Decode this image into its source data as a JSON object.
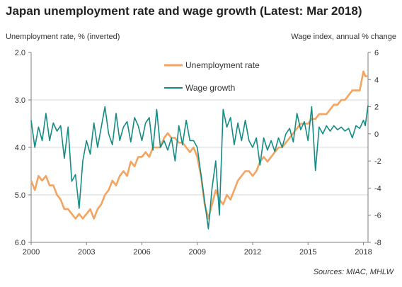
{
  "title": "Japan unemployment rate and wage growth (Latest: Mar 2018)",
  "source": "Sources: MIAC, MHLW",
  "colors": {
    "unemployment": "#f4a460",
    "wage": "#148b83",
    "grid": "#d9d9d9",
    "axis": "#7f7f7f"
  },
  "chart_data": {
    "type": "line",
    "left_axis_label": "Unemployment  rate, % (inverted)",
    "right_axis_label": "Wage index, annual % change",
    "left_axis": {
      "min": 2.0,
      "max": 6.0,
      "inverted": true,
      "ticks": [
        "2.0",
        "3.0",
        "4.0",
        "5.0",
        "6.0"
      ]
    },
    "right_axis": {
      "min": -8,
      "max": 6,
      "ticks": [
        "6",
        "4",
        "2",
        "0",
        "-2",
        "-4",
        "-6",
        "-8"
      ]
    },
    "x_ticks": [
      "2000",
      "2003",
      "2006",
      "2009",
      "2012",
      "2015",
      "2018"
    ],
    "x_range": [
      2000,
      2018.25
    ],
    "legend_position": "top-center",
    "series": [
      {
        "name": "Unemployment rate",
        "axis": "left",
        "points": [
          [
            2000.0,
            4.7
          ],
          [
            2000.2,
            4.9
          ],
          [
            2000.4,
            4.6
          ],
          [
            2000.6,
            4.7
          ],
          [
            2000.8,
            4.6
          ],
          [
            2001.0,
            4.8
          ],
          [
            2001.2,
            4.8
          ],
          [
            2001.4,
            5.0
          ],
          [
            2001.6,
            5.1
          ],
          [
            2001.8,
            5.3
          ],
          [
            2002.0,
            5.3
          ],
          [
            2002.2,
            5.4
          ],
          [
            2002.4,
            5.5
          ],
          [
            2002.6,
            5.4
          ],
          [
            2002.8,
            5.5
          ],
          [
            2003.0,
            5.4
          ],
          [
            2003.2,
            5.3
          ],
          [
            2003.4,
            5.5
          ],
          [
            2003.6,
            5.3
          ],
          [
            2003.8,
            5.2
          ],
          [
            2004.0,
            5.0
          ],
          [
            2004.2,
            4.9
          ],
          [
            2004.4,
            4.7
          ],
          [
            2004.6,
            4.8
          ],
          [
            2004.8,
            4.6
          ],
          [
            2005.0,
            4.5
          ],
          [
            2005.2,
            4.6
          ],
          [
            2005.4,
            4.3
          ],
          [
            2005.6,
            4.4
          ],
          [
            2005.8,
            4.2
          ],
          [
            2006.0,
            4.2
          ],
          [
            2006.2,
            4.1
          ],
          [
            2006.4,
            4.2
          ],
          [
            2006.6,
            4.0
          ],
          [
            2006.8,
            4.0
          ],
          [
            2007.0,
            4.0
          ],
          [
            2007.2,
            3.8
          ],
          [
            2007.4,
            3.7
          ],
          [
            2007.6,
            3.8
          ],
          [
            2007.8,
            3.8
          ],
          [
            2008.0,
            3.9
          ],
          [
            2008.2,
            3.9
          ],
          [
            2008.4,
            4.0
          ],
          [
            2008.6,
            4.1
          ],
          [
            2008.8,
            4.0
          ],
          [
            2009.0,
            4.2
          ],
          [
            2009.2,
            4.6
          ],
          [
            2009.4,
            5.2
          ],
          [
            2009.6,
            5.5
          ],
          [
            2009.8,
            5.2
          ],
          [
            2010.0,
            4.9
          ],
          [
            2010.2,
            5.1
          ],
          [
            2010.4,
            5.2
          ],
          [
            2010.6,
            5.0
          ],
          [
            2010.8,
            5.1
          ],
          [
            2011.0,
            4.9
          ],
          [
            2011.2,
            4.7
          ],
          [
            2011.4,
            4.6
          ],
          [
            2011.6,
            4.5
          ],
          [
            2011.8,
            4.5
          ],
          [
            2012.0,
            4.6
          ],
          [
            2012.2,
            4.5
          ],
          [
            2012.4,
            4.3
          ],
          [
            2012.6,
            4.2
          ],
          [
            2012.8,
            4.3
          ],
          [
            2013.0,
            4.2
          ],
          [
            2013.2,
            4.1
          ],
          [
            2013.4,
            4.0
          ],
          [
            2013.6,
            4.0
          ],
          [
            2013.8,
            3.9
          ],
          [
            2014.0,
            3.8
          ],
          [
            2014.2,
            3.7
          ],
          [
            2014.4,
            3.6
          ],
          [
            2014.6,
            3.5
          ],
          [
            2014.8,
            3.5
          ],
          [
            2015.0,
            3.5
          ],
          [
            2015.2,
            3.4
          ],
          [
            2015.4,
            3.4
          ],
          [
            2015.6,
            3.3
          ],
          [
            2015.8,
            3.3
          ],
          [
            2016.0,
            3.3
          ],
          [
            2016.2,
            3.2
          ],
          [
            2016.4,
            3.1
          ],
          [
            2016.6,
            3.1
          ],
          [
            2016.8,
            3.0
          ],
          [
            2017.0,
            3.0
          ],
          [
            2017.2,
            2.9
          ],
          [
            2017.4,
            2.8
          ],
          [
            2017.6,
            2.8
          ],
          [
            2017.8,
            2.8
          ],
          [
            2018.0,
            2.4
          ],
          [
            2018.1,
            2.5
          ],
          [
            2018.25,
            2.5
          ]
        ]
      },
      {
        "name": "Wage growth",
        "axis": "right",
        "points": [
          [
            2000.0,
            1.0
          ],
          [
            2000.2,
            -1.0
          ],
          [
            2000.4,
            0.5
          ],
          [
            2000.6,
            -0.5
          ],
          [
            2000.8,
            1.5
          ],
          [
            2001.0,
            -0.5
          ],
          [
            2001.2,
            0.8
          ],
          [
            2001.4,
            0.2
          ],
          [
            2001.6,
            0.6
          ],
          [
            2001.8,
            -1.8
          ],
          [
            2002.0,
            0.5
          ],
          [
            2002.2,
            -3.5
          ],
          [
            2002.4,
            -3.0
          ],
          [
            2002.6,
            -5.5
          ],
          [
            2002.8,
            -2.0
          ],
          [
            2003.0,
            -0.5
          ],
          [
            2003.2,
            -1.5
          ],
          [
            2003.4,
            0.8
          ],
          [
            2003.6,
            -1.0
          ],
          [
            2003.8,
            0.5
          ],
          [
            2004.0,
            2.0
          ],
          [
            2004.2,
            0.0
          ],
          [
            2004.4,
            -0.8
          ],
          [
            2004.6,
            1.5
          ],
          [
            2004.8,
            -0.5
          ],
          [
            2005.0,
            0.5
          ],
          [
            2005.2,
            0.9
          ],
          [
            2005.4,
            -0.6
          ],
          [
            2005.6,
            1.2
          ],
          [
            2005.8,
            0.6
          ],
          [
            2006.0,
            -0.5
          ],
          [
            2006.2,
            0.8
          ],
          [
            2006.4,
            1.2
          ],
          [
            2006.6,
            -1.2
          ],
          [
            2006.8,
            1.8
          ],
          [
            2007.0,
            -1.0
          ],
          [
            2007.2,
            -0.5
          ],
          [
            2007.4,
            -1.2
          ],
          [
            2007.6,
            -0.3
          ],
          [
            2007.8,
            -2.0
          ],
          [
            2008.0,
            0.6
          ],
          [
            2008.2,
            -0.8
          ],
          [
            2008.4,
            1.0
          ],
          [
            2008.6,
            -0.5
          ],
          [
            2008.8,
            -0.5
          ],
          [
            2009.0,
            -1.0
          ],
          [
            2009.2,
            -3.0
          ],
          [
            2009.4,
            -5.0
          ],
          [
            2009.6,
            -7.0
          ],
          [
            2009.8,
            -4.0
          ],
          [
            2010.0,
            -2.0
          ],
          [
            2010.2,
            -6.0
          ],
          [
            2010.4,
            1.8
          ],
          [
            2010.6,
            0.5
          ],
          [
            2010.8,
            1.2
          ],
          [
            2011.0,
            -0.8
          ],
          [
            2011.2,
            0.8
          ],
          [
            2011.4,
            -0.5
          ],
          [
            2011.6,
            1.0
          ],
          [
            2011.8,
            -0.5
          ],
          [
            2012.0,
            -1.0
          ],
          [
            2012.2,
            -0.3
          ],
          [
            2012.4,
            -2.3
          ],
          [
            2012.6,
            -0.3
          ],
          [
            2012.8,
            -1.2
          ],
          [
            2013.0,
            -0.5
          ],
          [
            2013.2,
            -1.3
          ],
          [
            2013.4,
            -0.3
          ],
          [
            2013.6,
            -1.0
          ],
          [
            2013.8,
            0.0
          ],
          [
            2014.0,
            0.4
          ],
          [
            2014.2,
            -0.6
          ],
          [
            2014.4,
            1.5
          ],
          [
            2014.6,
            0.3
          ],
          [
            2014.8,
            0.9
          ],
          [
            2015.0,
            -0.5
          ],
          [
            2015.2,
            2.0
          ],
          [
            2015.4,
            -2.7
          ],
          [
            2015.6,
            0.5
          ],
          [
            2015.8,
            0.0
          ],
          [
            2016.0,
            0.6
          ],
          [
            2016.2,
            0.2
          ],
          [
            2016.4,
            0.6
          ],
          [
            2016.6,
            0.3
          ],
          [
            2016.8,
            0.5
          ],
          [
            2017.0,
            0.2
          ],
          [
            2017.2,
            0.4
          ],
          [
            2017.4,
            -0.3
          ],
          [
            2017.6,
            0.6
          ],
          [
            2017.8,
            0.4
          ],
          [
            2018.0,
            1.0
          ],
          [
            2018.1,
            0.6
          ],
          [
            2018.25,
            2.1
          ]
        ]
      }
    ]
  }
}
